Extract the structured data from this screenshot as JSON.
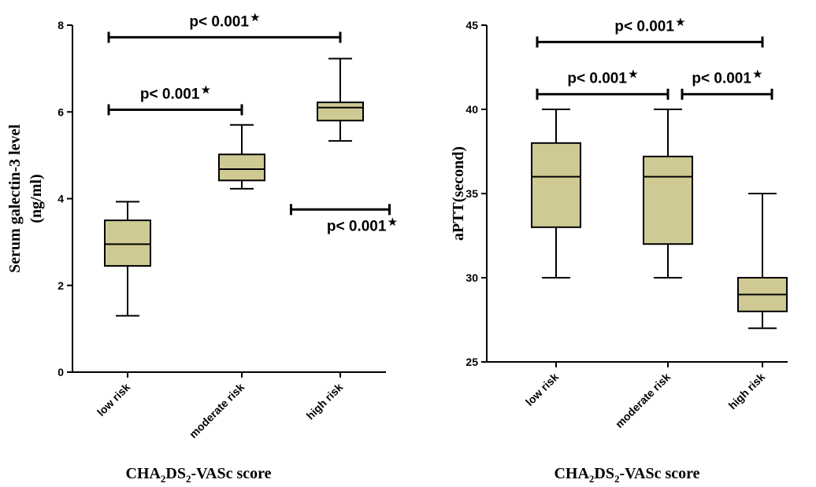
{
  "chart_data": [
    {
      "type": "box",
      "ylabel_line1": "Serum galectin-3 level",
      "ylabel_line2": "(ng/ml)",
      "xlabel": {
        "pre": "CHA",
        "sub1": "2",
        "mid": "DS",
        "sub2": "2",
        "post": "-VASc score"
      },
      "ylim": [
        0,
        8
      ],
      "yticks": [
        0,
        2,
        4,
        6,
        8
      ],
      "box_color": "#cfca93",
      "categories": [
        "low risk",
        "moderate risk",
        "high risk"
      ],
      "boxes": [
        {
          "whisker_low": 1.3,
          "q1": 2.45,
          "median": 2.95,
          "q3": 3.5,
          "whisker_high": 3.93
        },
        {
          "whisker_low": 4.23,
          "q1": 4.42,
          "median": 4.68,
          "q3": 5.02,
          "whisker_high": 5.7
        },
        {
          "whisker_low": 5.33,
          "q1": 5.8,
          "median": 6.1,
          "q3": 6.22,
          "whisker_high": 7.23
        }
      ],
      "annotations": [
        {
          "text": "p< 0.001",
          "symbol": "★",
          "from": 0,
          "to": 2,
          "y": 7.72,
          "label_pos": "above"
        },
        {
          "text": "p< 0.001",
          "symbol": "★",
          "from": 0,
          "to": 1,
          "y": 6.05,
          "label_pos": "above"
        },
        {
          "text": "p< 0.001",
          "symbol": "★",
          "from": 1.5,
          "to": 2.5,
          "y": 3.75,
          "label_pos": "below"
        }
      ]
    },
    {
      "type": "box",
      "ylabel_line1": "aPTT(second)",
      "xlabel": {
        "pre": "CHA",
        "sub1": "2",
        "mid": "DS",
        "sub2": "2",
        "post": "-VASc score"
      },
      "ylim": [
        25,
        45
      ],
      "yticks": [
        25,
        30,
        35,
        40,
        45
      ],
      "box_color": "#cfca93",
      "categories": [
        "low risk",
        "moderate risk",
        "high risk"
      ],
      "boxes": [
        {
          "whisker_low": 30,
          "q1": 33,
          "median": 36,
          "q3": 38,
          "whisker_high": 40
        },
        {
          "whisker_low": 30,
          "q1": 32,
          "median": 36,
          "q3": 37.2,
          "whisker_high": 40
        },
        {
          "whisker_low": 27,
          "q1": 28,
          "median": 29,
          "q3": 30,
          "whisker_high": 35
        }
      ],
      "annotations": [
        {
          "text": "p< 0.001",
          "symbol": "★",
          "from": 0,
          "to": 2,
          "y": 44,
          "label_pos": "above"
        },
        {
          "text": "p< 0.001",
          "symbol": "★",
          "from": 0,
          "to": 1,
          "y": 40.9,
          "label_pos": "above"
        },
        {
          "text": "p< 0.001",
          "symbol": "★",
          "from": 1.15,
          "to": 2.1,
          "y": 40.9,
          "label_pos": "above"
        }
      ]
    }
  ]
}
